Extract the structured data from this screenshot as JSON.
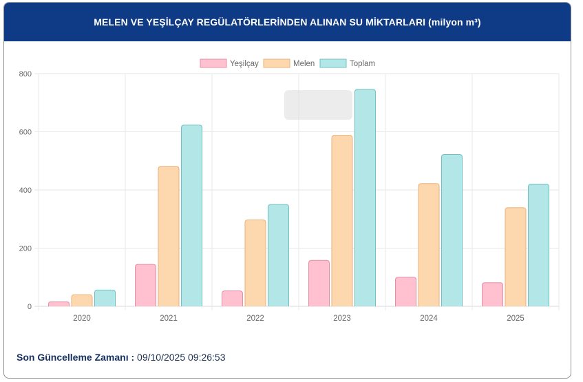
{
  "header": {
    "title": "MELEN VE YEŞİLÇAY REGÜLATÖRLERİNDEN ALINAN SU MİKTARLARI (milyon m³)"
  },
  "footer": {
    "label": "Son Güncelleme Zamanı :",
    "value": "09/10/2025 09:26:53"
  },
  "colors": {
    "header_bg": "#0f3a85",
    "yesilcay_fill": "#ffc0cf",
    "yesilcay_border": "#e58fa6",
    "melen_fill": "#fdd7ad",
    "melen_border": "#eab27a",
    "toplam_fill": "#b3e6e6",
    "toplam_border": "#6fc1c1"
  },
  "chart_data": {
    "type": "bar",
    "title": "MELEN VE YEŞİLÇAY REGÜLATÖRLERİNDEN ALINAN SU MİKTARLARI (milyon m³)",
    "xlabel": "",
    "ylabel": "",
    "categories": [
      "2020",
      "2021",
      "2022",
      "2023",
      "2024",
      "2025"
    ],
    "series": [
      {
        "name": "Yeşilçay",
        "values": [
          15,
          144,
          53,
          158,
          100,
          81
        ]
      },
      {
        "name": "Melen",
        "values": [
          40,
          481,
          297,
          588,
          422,
          339
        ]
      },
      {
        "name": "Toplam",
        "values": [
          56,
          623,
          350,
          746,
          522,
          420
        ]
      }
    ],
    "ylim": [
      0,
      800
    ],
    "yticks": [
      0,
      200,
      400,
      600,
      800
    ],
    "grid": true,
    "legend_position": "top"
  }
}
